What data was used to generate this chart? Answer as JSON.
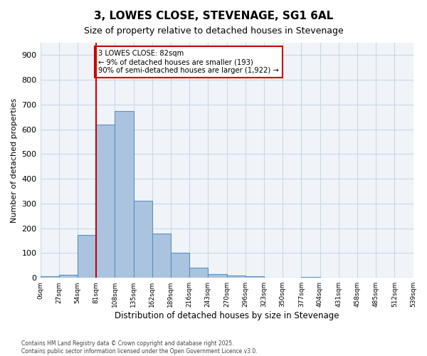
{
  "title": "3, LOWES CLOSE, STEVENAGE, SG1 6AL",
  "subtitle": "Size of property relative to detached houses in Stevenage",
  "xlabel": "Distribution of detached houses by size in Stevenage",
  "ylabel": "Number of detached properties",
  "bin_labels": [
    "0sqm",
    "27sqm",
    "54sqm",
    "81sqm",
    "108sqm",
    "135sqm",
    "162sqm",
    "189sqm",
    "216sqm",
    "243sqm",
    "270sqm",
    "296sqm",
    "323sqm",
    "350sqm",
    "377sqm",
    "404sqm",
    "431sqm",
    "458sqm",
    "485sqm",
    "512sqm",
    "539sqm"
  ],
  "bar_values": [
    5,
    13,
    172,
    620,
    675,
    310,
    178,
    100,
    42,
    14,
    8,
    5,
    0,
    0,
    3,
    0,
    0,
    0,
    0,
    0
  ],
  "bar_color": "#aac4e0",
  "bar_edge_color": "#5a8fc0",
  "vline_x": 3,
  "vline_color": "#cc0000",
  "annotation_text": "3 LOWES CLOSE: 82sqm\n← 9% of detached houses are smaller (193)\n90% of semi-detached houses are larger (1,922) →",
  "annotation_box_color": "#cc0000",
  "ylim": [
    0,
    950
  ],
  "yticks": [
    0,
    100,
    200,
    300,
    400,
    500,
    600,
    700,
    800,
    900
  ],
  "footer_line1": "Contains HM Land Registry data © Crown copyright and database right 2025.",
  "footer_line2": "Contains public sector information licensed under the Open Government Licence v3.0.",
  "bg_color": "#f0f4f8",
  "grid_color": "#c8d8e8",
  "bin_width": 1,
  "n_bars": 20
}
